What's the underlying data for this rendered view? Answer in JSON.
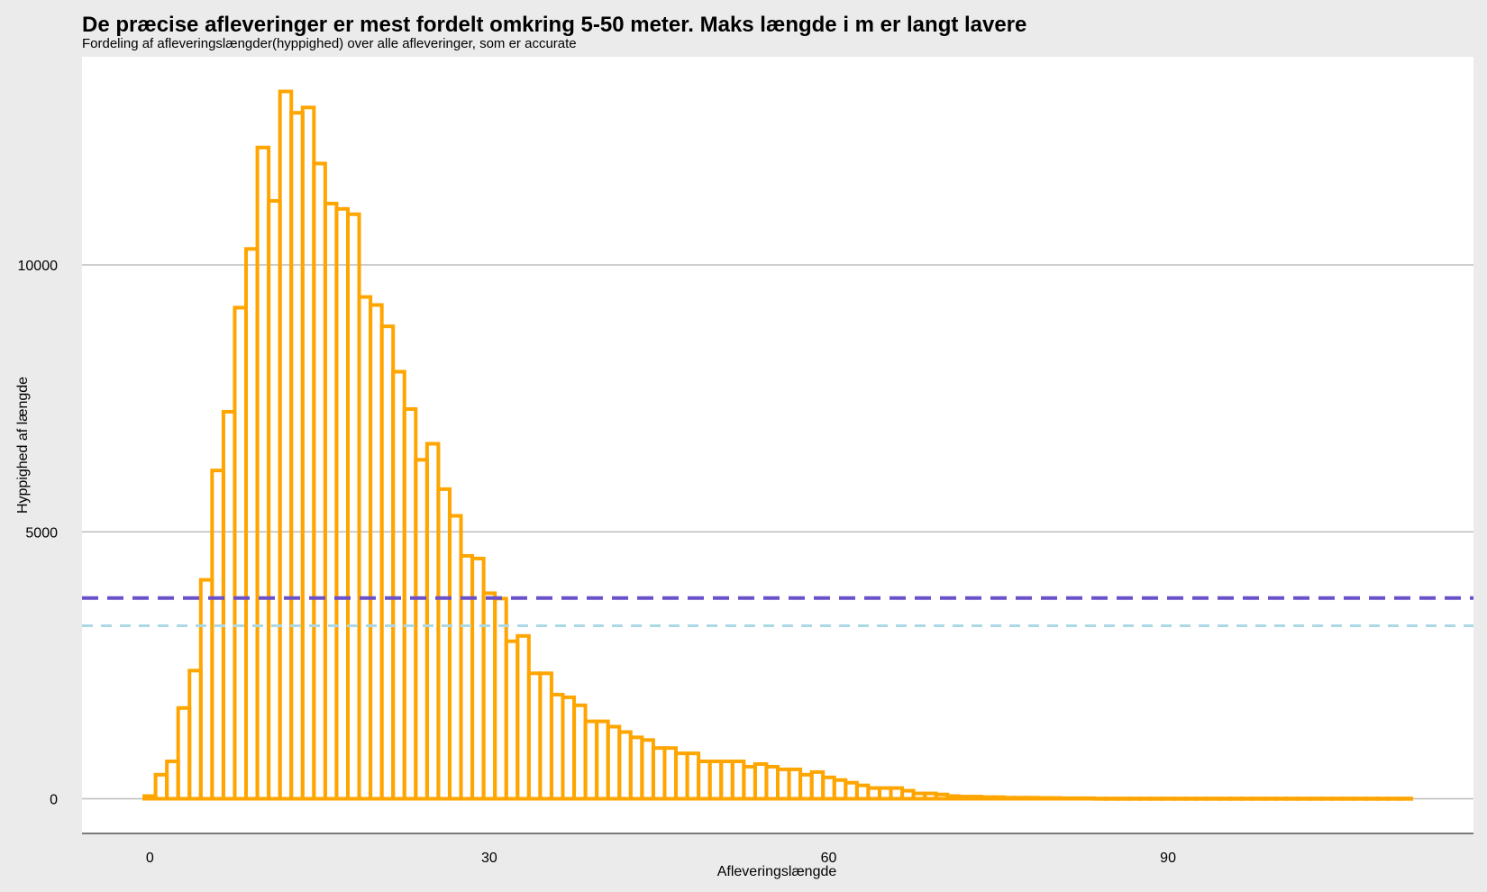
{
  "colors": {
    "page_background": "#ebebeb",
    "panel_background": "#ffffff",
    "gridline": "#bdbdbd",
    "bar_outline": "#FFA500",
    "mean_line": "#6A51C9",
    "median_line": "#ADD8E6"
  },
  "chart_data": {
    "type": "bar",
    "title": "De præcise afleveringer er mest fordelt omkring 5-50 meter. Maks længde i m er langt lavere",
    "subtitle": "Fordeling af afleveringslængder(hyppighed) over alle afleveringer, som er accurate",
    "xlabel": "Afleveringslængde",
    "ylabel": "Hyppighed af længde",
    "xlim": [
      -6,
      117
    ],
    "ylim": [
      -650,
      13900
    ],
    "x_ticks": [
      0,
      30,
      60,
      90
    ],
    "y_ticks": [
      0,
      5000,
      10000
    ],
    "grid": "horizontal",
    "legend": "none",
    "bin_width": 1,
    "bin_starts": [
      -0.5,
      0.5,
      1.5,
      2.5,
      3.5,
      4.5,
      5.5,
      6.5,
      7.5,
      8.5,
      9.5,
      10.5,
      11.5,
      12.5,
      13.5,
      14.5,
      15.5,
      16.5,
      17.5,
      18.5,
      19.5,
      20.5,
      21.5,
      22.5,
      23.5,
      24.5,
      25.5,
      26.5,
      27.5,
      28.5,
      29.5,
      30.5,
      31.5,
      32.5,
      33.5,
      34.5,
      35.5,
      36.5,
      37.5,
      38.5,
      39.5,
      40.5,
      41.5,
      42.5,
      43.5,
      44.5,
      45.5,
      46.5,
      47.5,
      48.5,
      49.5,
      50.5,
      51.5,
      52.5,
      53.5,
      54.5,
      55.5,
      56.5,
      57.5,
      58.5,
      59.5,
      60.5,
      61.5,
      62.5,
      63.5,
      64.5,
      65.5,
      66.5,
      67.5,
      68.5,
      69.5,
      70.5,
      71.5,
      72.5,
      73.5,
      74.5,
      75.5,
      76.5,
      77.5,
      78.5,
      79.5,
      80.5,
      81.5,
      82.5,
      83.5,
      84.5,
      85.5,
      86.5,
      87.5,
      88.5,
      89.5,
      90.5,
      91.5,
      92.5,
      93.5,
      94.5,
      95.5,
      96.5,
      97.5,
      98.5,
      99.5,
      100.5,
      101.5,
      102.5,
      103.5,
      104.5,
      105.5,
      106.5,
      107.5,
      108.5,
      109.5,
      110.5
    ],
    "values": [
      50,
      450,
      700,
      1700,
      2400,
      4100,
      6150,
      7250,
      9200,
      10300,
      12200,
      11200,
      13250,
      12850,
      12950,
      11900,
      11150,
      11050,
      10950,
      9400,
      9250,
      8850,
      8000,
      7300,
      6350,
      6650,
      5800,
      5300,
      4550,
      4500,
      3850,
      3750,
      2950,
      3050,
      2350,
      2350,
      1950,
      1900,
      1750,
      1450,
      1450,
      1350,
      1250,
      1150,
      1100,
      950,
      950,
      850,
      850,
      700,
      700,
      700,
      700,
      600,
      650,
      600,
      550,
      550,
      450,
      500,
      400,
      350,
      300,
      250,
      200,
      200,
      200,
      150,
      100,
      100,
      80,
      50,
      40,
      40,
      30,
      30,
      20,
      20,
      20,
      15,
      15,
      10,
      10,
      10,
      5,
      5,
      5,
      5,
      5,
      5,
      5,
      5,
      5,
      5,
      5,
      5,
      5,
      5,
      5,
      5,
      5,
      5,
      5,
      5,
      5,
      5,
      5,
      5,
      5,
      5,
      5,
      5
    ],
    "reference_lines": [
      {
        "kind": "mean",
        "y": 3760,
        "color": "#6A51C9",
        "dash": "long"
      },
      {
        "kind": "median",
        "y": 3240,
        "color": "#ADD8E6",
        "dash": "short"
      }
    ]
  }
}
